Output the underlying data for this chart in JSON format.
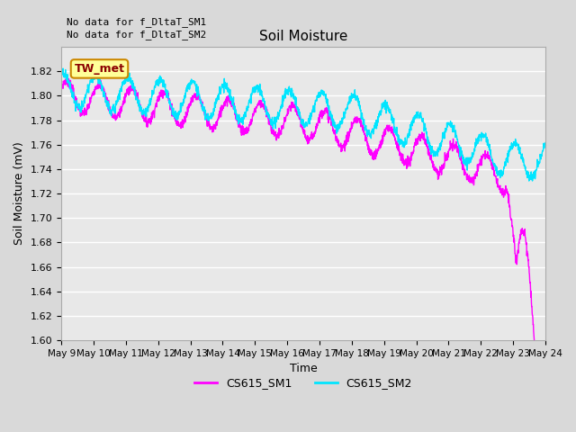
{
  "title": "Soil Moisture",
  "xlabel": "Time",
  "ylabel": "Soil Moisture (mV)",
  "ylim": [
    1.6,
    1.84
  ],
  "yticks": [
    1.6,
    1.62,
    1.64,
    1.66,
    1.68,
    1.7,
    1.72,
    1.74,
    1.76,
    1.78,
    1.8,
    1.82
  ],
  "bg_color": "#d9d9d9",
  "plot_bg_color": "#e8e8e8",
  "grid_color": "white",
  "sm1_color": "#ff00ff",
  "sm2_color": "#00e5ff",
  "annotation_text": "No data for f_DltaT_SM1\nNo data for f_DltaT_SM2",
  "tw_met_label": "TW_met",
  "tw_met_bg": "#ffff99",
  "tw_met_border": "#cc8800",
  "tw_met_text_color": "#8b0000",
  "legend_sm1": "CS615_SM1",
  "legend_sm2": "CS615_SM2"
}
